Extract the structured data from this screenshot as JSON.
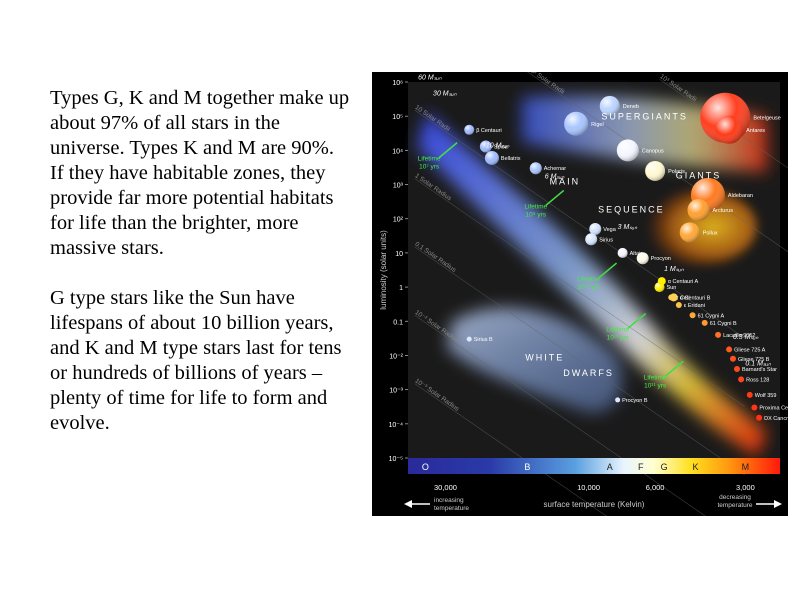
{
  "text": {
    "paragraph1": "Types G, K and M together make up about 97% of all stars in the universe.  Types K and M are 90%.  If they have habitable zones, they provide far more potential habitats for life than the brighter, more massive stars.",
    "paragraph2": "G type stars like the Sun have lifespans of about 10 billion years, and K and M type stars last for tens or hundreds of billions of years – plenty of time for life to form and evolve."
  },
  "chart_data": {
    "type": "scatter",
    "title": "",
    "xlabel": "surface temperature (Kelvin)",
    "ylabel": "luminosity (solar units)",
    "x_scale": "log-reversed",
    "y_scale": "log",
    "xlim": [
      40000,
      2300
    ],
    "ylim": [
      1e-05,
      1000000
    ],
    "y_ticks": [
      {
        "value": 1000000,
        "label": "10⁶"
      },
      {
        "value": 100000,
        "label": "10⁵"
      },
      {
        "value": 10000,
        "label": "10⁴"
      },
      {
        "value": 1000,
        "label": "10³"
      },
      {
        "value": 100,
        "label": "10²"
      },
      {
        "value": 10,
        "label": "10"
      },
      {
        "value": 1,
        "label": "1"
      },
      {
        "value": 0.1,
        "label": "0.1"
      },
      {
        "value": 0.01,
        "label": "10⁻²"
      },
      {
        "value": 0.001,
        "label": "10⁻³"
      },
      {
        "value": 0.0001,
        "label": "10⁻⁴"
      },
      {
        "value": 1e-05,
        "label": "10⁻⁵"
      }
    ],
    "x_ticks": [
      {
        "value": 30000,
        "label": "30,000"
      },
      {
        "value": 10000,
        "label": "10,000"
      },
      {
        "value": 6000,
        "label": "6,000"
      },
      {
        "value": 3000,
        "label": "3,000"
      }
    ],
    "spectral_classes": [
      {
        "label": "O",
        "temp": 35000
      },
      {
        "label": "B",
        "temp": 16000
      },
      {
        "label": "A",
        "temp": 8500
      },
      {
        "label": "F",
        "temp": 6700
      },
      {
        "label": "G",
        "temp": 5600
      },
      {
        "label": "K",
        "temp": 4400
      },
      {
        "label": "M",
        "temp": 3000
      }
    ],
    "axis_notes": {
      "left": "increasing temperature",
      "right": "decreasing temperature"
    },
    "regions": [
      {
        "label": "MAIN",
        "temp": 12000,
        "lum": 1000
      },
      {
        "label": "SEQUENCE",
        "temp": 7200,
        "lum": 150
      },
      {
        "label": "SUPERGIANTS",
        "temp": 6500,
        "lum": 80000
      },
      {
        "label": "GIANTS",
        "temp": 4300,
        "lum": 1500
      },
      {
        "label": "WHITE",
        "temp": 14000,
        "lum": 0.007
      },
      {
        "label": "DWARFS",
        "temp": 10000,
        "lum": 0.0025
      }
    ],
    "radius_lines": [
      {
        "label": "10² Solar Radii",
        "temp": 16000,
        "lum": 2000000
      },
      {
        "label": "10³ Solar Radii",
        "temp": 5800,
        "lum": 1200000
      },
      {
        "label": "10 Solar Radii",
        "temp": 38000,
        "lum": 150000
      },
      {
        "label": "1 Solar Radius",
        "temp": 38000,
        "lum": 1500
      },
      {
        "label": "0.1 Solar Radius",
        "temp": 38000,
        "lum": 15
      },
      {
        "label": "10⁻² Solar Radius",
        "temp": 38000,
        "lum": 0.15
      },
      {
        "label": "10⁻³ Solar Radius",
        "temp": 38000,
        "lum": 0.0015
      }
    ],
    "mass_labels": [
      {
        "label": "60 Mₛᵤₙ",
        "temp": 37000,
        "lum": 1200000
      },
      {
        "label": "30 Mₛᵤₙ",
        "temp": 33000,
        "lum": 400000
      },
      {
        "label": "10 Mₛᵤₙ",
        "temp": 22000,
        "lum": 12000
      },
      {
        "label": "6 Mₛᵤₙ",
        "temp": 14000,
        "lum": 1500
      },
      {
        "label": "3 Mₛᵤₙ",
        "temp": 8000,
        "lum": 50
      },
      {
        "label": "1 Mₛᵤₙ",
        "temp": 5600,
        "lum": 3
      },
      {
        "label": "0.3 Mₛᵤₙ",
        "temp": 3300,
        "lum": 0.03
      },
      {
        "label": "0.1 Mₛᵤₙ",
        "temp": 3000,
        "lum": 0.005
      }
    ],
    "lifetimes": [
      {
        "label": "Lifetime",
        "value": "10⁷ yrs",
        "temp": 34000,
        "lum": 5000
      },
      {
        "label": "Lifetime",
        "value": "10⁹ yrs",
        "temp": 15000,
        "lum": 200
      },
      {
        "label": "Lifetime",
        "value": "10¹⁰ yrs",
        "temp": 10000,
        "lum": 1.5
      },
      {
        "label": "Lifetime",
        "value": "10¹¹ yrs",
        "temp": 8000,
        "lum": 0.05
      },
      {
        "label": "Lifetime",
        "value": "10¹¹ yrs",
        "temp": 6000,
        "lum": 0.002
      }
    ],
    "stars": [
      {
        "name": "Deneb",
        "temp": 8500,
        "lum": 200000,
        "size": 10,
        "color": "#bcd4ff"
      },
      {
        "name": "Rigel",
        "temp": 11000,
        "lum": 60000,
        "size": 12,
        "color": "#a8c6ff"
      },
      {
        "name": "β Centauri",
        "temp": 25000,
        "lum": 40000,
        "size": 5,
        "color": "#9db8ff"
      },
      {
        "name": "Spica",
        "temp": 22000,
        "lum": 13000,
        "size": 6,
        "color": "#9ebaff"
      },
      {
        "name": "Bellatrix",
        "temp": 21000,
        "lum": 6000,
        "size": 7,
        "color": "#9fbcff"
      },
      {
        "name": "Achernar",
        "temp": 15000,
        "lum": 3000,
        "size": 6,
        "color": "#aac6ff"
      },
      {
        "name": "Canopus",
        "temp": 7400,
        "lum": 10000,
        "size": 11,
        "color": "#f4f6ff"
      },
      {
        "name": "Polaris",
        "temp": 6000,
        "lum": 2500,
        "size": 10,
        "color": "#fff8d0"
      },
      {
        "name": "Betelgeuse",
        "temp": 3500,
        "lum": 90000,
        "size": 25,
        "color": "#ff4020"
      },
      {
        "name": "Antares",
        "temp": 3400,
        "lum": 40000,
        "size": 14,
        "color": "#ff3a18"
      },
      {
        "name": "Aldebaran",
        "temp": 4000,
        "lum": 500,
        "size": 17,
        "color": "#ff7a20"
      },
      {
        "name": "Arcturus",
        "temp": 4300,
        "lum": 180,
        "size": 11,
        "color": "#ffa030"
      },
      {
        "name": "Pollux",
        "temp": 4600,
        "lum": 40,
        "size": 10,
        "color": "#ffa838"
      },
      {
        "name": "Vega",
        "temp": 9500,
        "lum": 50,
        "size": 6,
        "color": "#d2e2ff"
      },
      {
        "name": "Sirius",
        "temp": 9800,
        "lum": 25,
        "size": 6,
        "color": "#d8e6ff"
      },
      {
        "name": "Procyon",
        "temp": 6600,
        "lum": 7,
        "size": 6,
        "color": "#fffbe8"
      },
      {
        "name": "Altair",
        "temp": 7700,
        "lum": 10,
        "size": 5,
        "color": "#f2f4ff"
      },
      {
        "name": "Sun",
        "temp": 5800,
        "lum": 1,
        "size": 5,
        "color": "#fff200"
      },
      {
        "name": "α Centauri A",
        "temp": 5700,
        "lum": 1.5,
        "size": 4,
        "color": "#fff000"
      },
      {
        "name": "α Centauri B",
        "temp": 5200,
        "lum": 0.5,
        "size": 4,
        "color": "#ffd050"
      },
      {
        "name": "τ Ceti",
        "temp": 5300,
        "lum": 0.5,
        "size": 3,
        "color": "#ffd058"
      },
      {
        "name": "ε Eridani",
        "temp": 5000,
        "lum": 0.3,
        "size": 3,
        "color": "#ffc048"
      },
      {
        "name": "61 Cygni A",
        "temp": 4500,
        "lum": 0.15,
        "size": 3,
        "color": "#ffa838"
      },
      {
        "name": "61 Cygni B",
        "temp": 4100,
        "lum": 0.09,
        "size": 3,
        "color": "#ff9830"
      },
      {
        "name": "Lacaille 9352",
        "temp": 3700,
        "lum": 0.04,
        "size": 3,
        "color": "#ff7028"
      },
      {
        "name": "Gliese 725 A",
        "temp": 3400,
        "lum": 0.015,
        "size": 3,
        "color": "#ff5a20"
      },
      {
        "name": "Gliese 725 B",
        "temp": 3300,
        "lum": 0.008,
        "size": 3,
        "color": "#ff5020"
      },
      {
        "name": "Barnard's Star",
        "temp": 3200,
        "lum": 0.004,
        "size": 3,
        "color": "#ff4a20"
      },
      {
        "name": "Ross 128",
        "temp": 3100,
        "lum": 0.002,
        "size": 3,
        "color": "#ff4420"
      },
      {
        "name": "Wolf 359",
        "temp": 2900,
        "lum": 0.0007,
        "size": 3,
        "color": "#ff3a18"
      },
      {
        "name": "Proxima Centauri",
        "temp": 2800,
        "lum": 0.0003,
        "size": 3,
        "color": "#ff3418"
      },
      {
        "name": "DX Cancri",
        "temp": 2700,
        "lum": 0.00015,
        "size": 3,
        "color": "#ff3018"
      },
      {
        "name": "Sirius B",
        "temp": 25000,
        "lum": 0.03,
        "size": 2.5,
        "color": "#dfe8ff"
      },
      {
        "name": "Procyon B",
        "temp": 8000,
        "lum": 0.0005,
        "size": 2.5,
        "color": "#dfe8ff"
      }
    ],
    "grid": false,
    "legend": "none"
  }
}
